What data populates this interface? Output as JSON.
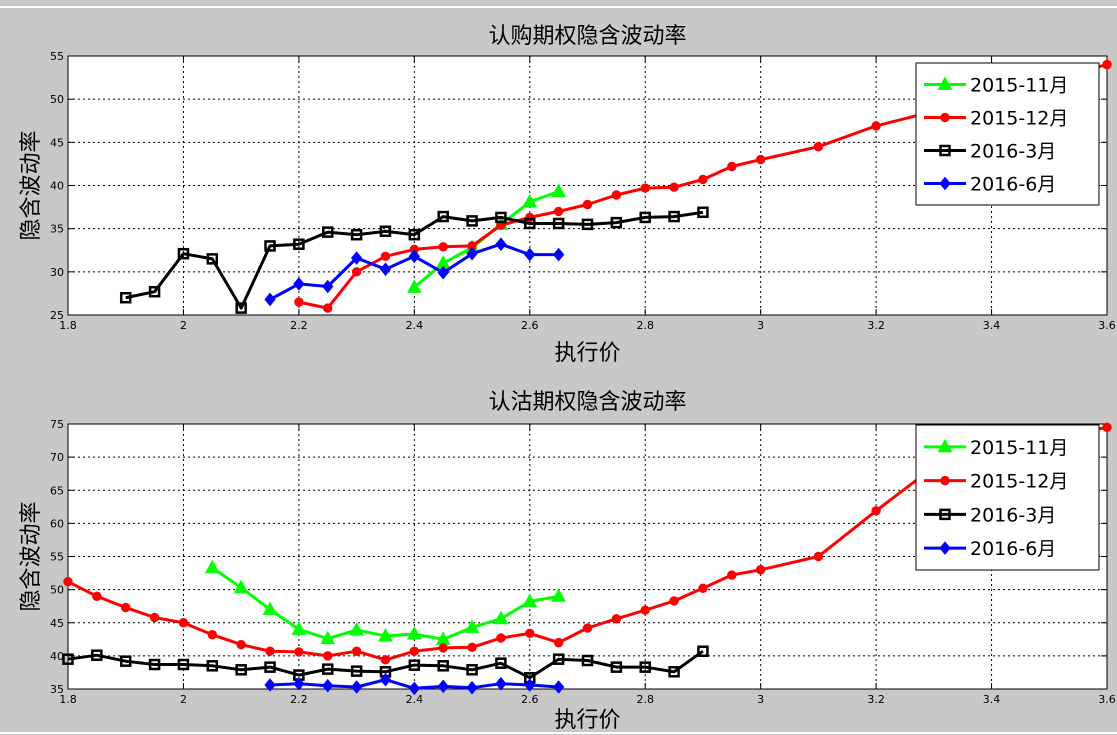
{
  "chart_data": [
    {
      "type": "line",
      "title": "认购期权隐含波动率",
      "xlabel": "执行价",
      "ylabel": "隐含波动率",
      "xlim": [
        1.8,
        3.6
      ],
      "ylim": [
        25,
        55
      ],
      "xticks": [
        "1.8",
        "2",
        "2.2",
        "2.4",
        "2.6",
        "2.8",
        "3",
        "3.2",
        "3.4",
        "3.6"
      ],
      "yticks": [
        "25",
        "30",
        "35",
        "40",
        "45",
        "50",
        "55"
      ],
      "grid": true,
      "legend_position": "top-right",
      "series": [
        {
          "name": "2015-11月",
          "color": "#00ff00",
          "marker": "triangle",
          "x": [
            2.4,
            2.45,
            2.5,
            2.55,
            2.6,
            2.65
          ],
          "y": [
            28.2,
            31.0,
            32.8,
            35.5,
            38.1,
            39.3
          ]
        },
        {
          "name": "2015-12月",
          "color": "#ff0000",
          "marker": "circle",
          "x": [
            2.2,
            2.25,
            2.3,
            2.35,
            2.4,
            2.45,
            2.5,
            2.55,
            2.6,
            2.65,
            2.7,
            2.75,
            2.8,
            2.85,
            2.9,
            2.95,
            3.0,
            3.1,
            3.2,
            3.3,
            3.4,
            3.5,
            3.6
          ],
          "y": [
            26.5,
            25.8,
            30.0,
            31.8,
            32.6,
            32.9,
            33.0,
            35.4,
            36.3,
            37.0,
            37.8,
            38.9,
            39.7,
            39.8,
            40.7,
            42.2,
            43.0,
            44.5,
            46.9,
            48.6,
            50.5,
            52.3,
            54.0
          ]
        },
        {
          "name": "2016-3月",
          "color": "#000000",
          "marker": "square",
          "x": [
            1.9,
            1.95,
            2.0,
            2.05,
            2.1,
            2.15,
            2.2,
            2.25,
            2.3,
            2.35,
            2.4,
            2.45,
            2.5,
            2.55,
            2.6,
            2.65,
            2.7,
            2.75,
            2.8,
            2.85,
            2.9
          ],
          "y": [
            27.0,
            27.7,
            32.1,
            31.5,
            25.8,
            33.0,
            33.2,
            34.6,
            34.3,
            34.7,
            34.3,
            36.4,
            35.9,
            36.3,
            35.6,
            35.6,
            35.5,
            35.7,
            36.3,
            36.4,
            36.9
          ]
        },
        {
          "name": "2016-6月",
          "color": "#0000ff",
          "marker": "diamond",
          "x": [
            2.15,
            2.2,
            2.25,
            2.3,
            2.35,
            2.4,
            2.45,
            2.5,
            2.55,
            2.6,
            2.65
          ],
          "y": [
            26.8,
            28.6,
            28.3,
            31.6,
            30.3,
            31.8,
            29.9,
            32.1,
            33.2,
            32.0,
            32.0
          ]
        }
      ]
    },
    {
      "type": "line",
      "title": "认沽期权隐含波动率",
      "xlabel": "执行价",
      "ylabel": "隐含波动率",
      "xlim": [
        1.8,
        3.6
      ],
      "ylim": [
        35,
        75
      ],
      "xticks": [
        "1.8",
        "2",
        "2.2",
        "2.4",
        "2.6",
        "2.8",
        "3",
        "3.2",
        "3.4",
        "3.6"
      ],
      "yticks": [
        "35",
        "40",
        "45",
        "50",
        "55",
        "60",
        "65",
        "70",
        "75"
      ],
      "grid": true,
      "legend_position": "top-right",
      "series": [
        {
          "name": "2015-11月",
          "color": "#00ff00",
          "marker": "triangle",
          "x": [
            2.05,
            2.1,
            2.15,
            2.2,
            2.25,
            2.3,
            2.35,
            2.4,
            2.45,
            2.5,
            2.55,
            2.6,
            2.65
          ],
          "y": [
            53.3,
            50.3,
            47.0,
            44.0,
            42.6,
            43.9,
            43.0,
            43.3,
            42.5,
            44.3,
            45.6,
            48.2,
            49.0
          ]
        },
        {
          "name": "2015-12月",
          "color": "#ff0000",
          "marker": "circle",
          "x": [
            1.8,
            1.85,
            1.9,
            1.95,
            2.0,
            2.05,
            2.1,
            2.15,
            2.2,
            2.25,
            2.3,
            2.35,
            2.4,
            2.45,
            2.5,
            2.55,
            2.6,
            2.65,
            2.7,
            2.75,
            2.8,
            2.85,
            2.9,
            2.95,
            3.0,
            3.1,
            3.2,
            3.3,
            3.4,
            3.5,
            3.6
          ],
          "y": [
            51.2,
            49.0,
            47.3,
            45.8,
            45.0,
            43.2,
            41.7,
            40.7,
            40.6,
            40.0,
            40.7,
            39.4,
            40.7,
            41.2,
            41.3,
            42.7,
            43.4,
            42.0,
            44.2,
            45.6,
            46.9,
            48.3,
            50.2,
            52.2,
            53.0,
            55.0,
            61.9,
            68.5,
            70.8,
            72.8,
            74.5
          ]
        },
        {
          "name": "2016-3月",
          "color": "#000000",
          "marker": "square",
          "x": [
            1.8,
            1.85,
            1.9,
            1.95,
            2.0,
            2.05,
            2.1,
            2.15,
            2.2,
            2.25,
            2.3,
            2.35,
            2.4,
            2.45,
            2.5,
            2.55,
            2.6,
            2.65,
            2.7,
            2.75,
            2.8,
            2.85,
            2.9
          ],
          "y": [
            39.5,
            40.1,
            39.2,
            38.7,
            38.7,
            38.5,
            37.9,
            38.3,
            37.1,
            38.0,
            37.7,
            37.6,
            38.6,
            38.5,
            37.9,
            38.9,
            36.7,
            39.5,
            39.3,
            38.3,
            38.3,
            37.6,
            40.7
          ]
        },
        {
          "name": "2016-6月",
          "color": "#0000ff",
          "marker": "diamond",
          "x": [
            2.15,
            2.2,
            2.25,
            2.3,
            2.35,
            2.4,
            2.45,
            2.5,
            2.55,
            2.6,
            2.65
          ],
          "y": [
            35.6,
            35.8,
            35.5,
            35.3,
            36.4,
            35.1,
            35.4,
            35.2,
            35.8,
            35.6,
            35.3
          ]
        }
      ]
    }
  ]
}
